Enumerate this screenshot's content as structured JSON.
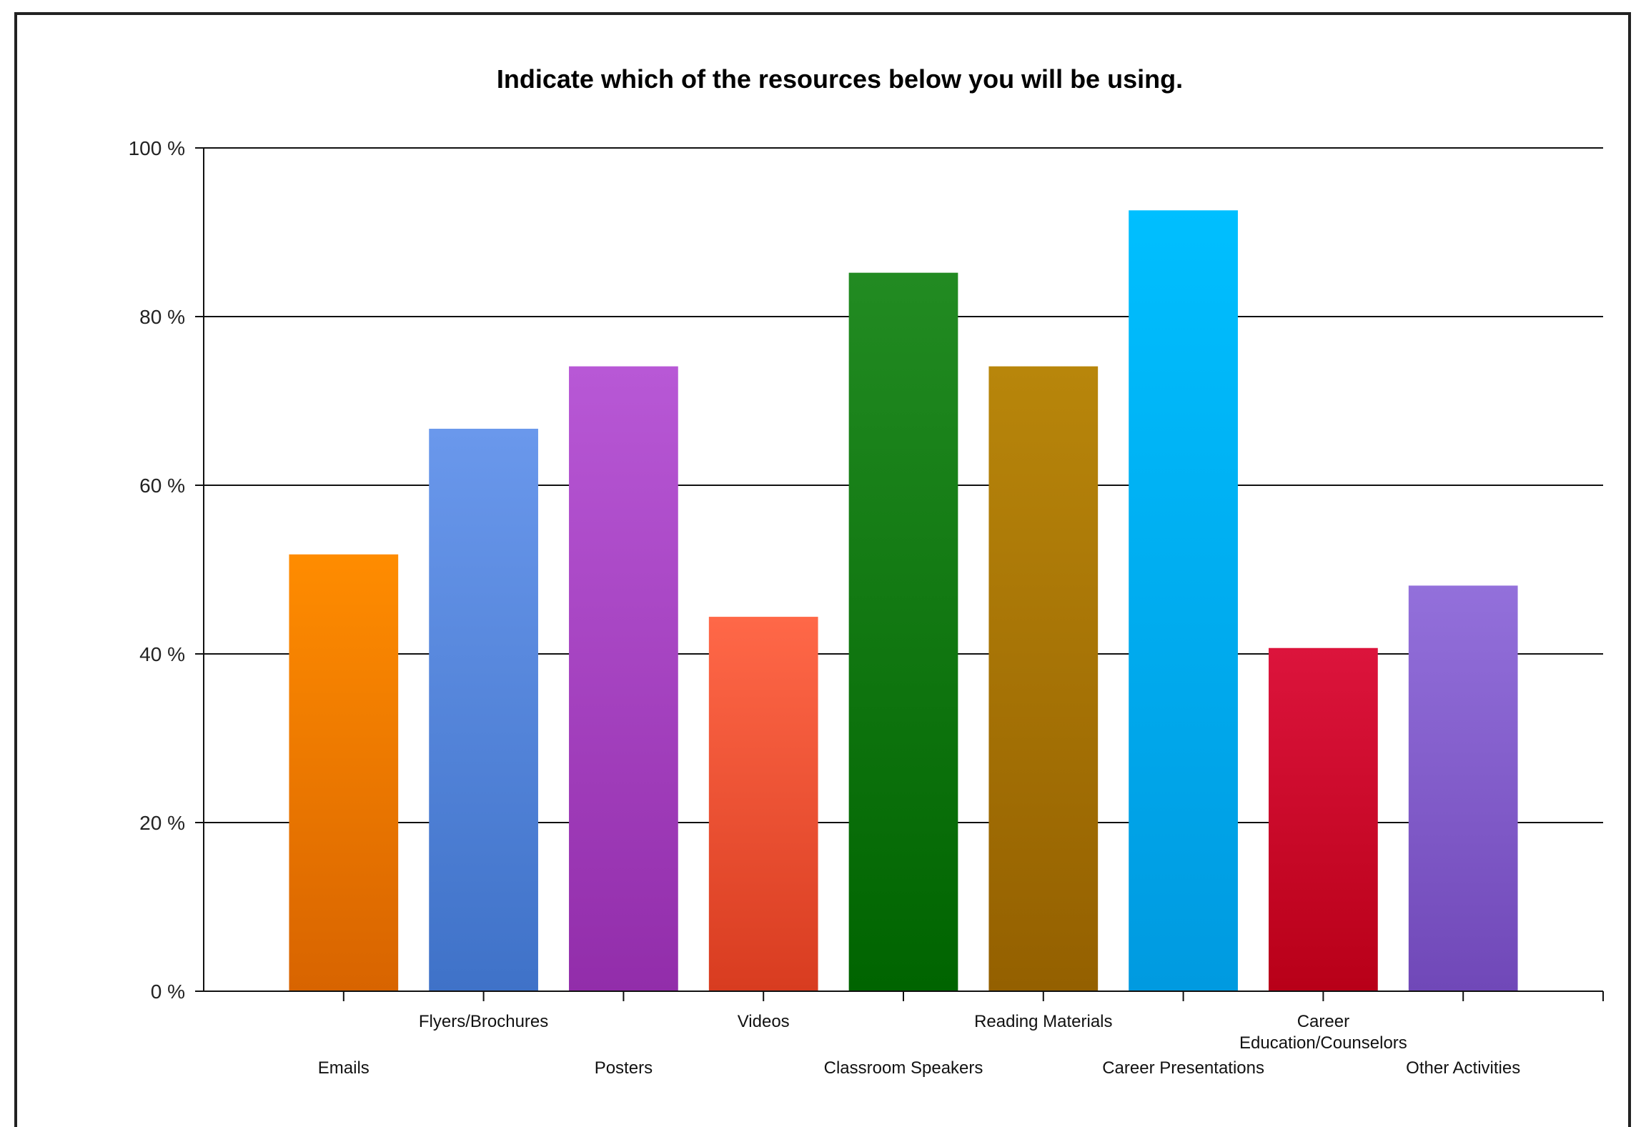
{
  "chart_data": {
    "type": "bar",
    "title": "Indicate which of the resources below you will be using.",
    "xlabel": "",
    "ylabel": "",
    "ylim": [
      0,
      100
    ],
    "yticks": [
      0,
      20,
      40,
      60,
      80,
      100
    ],
    "ytick_labels": [
      "0 %",
      "20 %",
      "40 %",
      "60 %",
      "80 %",
      "100 %"
    ],
    "grid": true,
    "categories": [
      "Emails",
      "Flyers/Brochures",
      "Posters",
      "Videos",
      "Classroom Speakers",
      "Reading Materials",
      "Career Presentations",
      "Career Education/Counselors",
      "Other Activities"
    ],
    "category_label_lines": [
      [
        "Emails"
      ],
      [
        "Flyers/Brochures"
      ],
      [
        "Posters"
      ],
      [
        "Videos"
      ],
      [
        "Classroom Speakers"
      ],
      [
        "Reading Materials"
      ],
      [
        "Career Presentations"
      ],
      [
        "Career",
        "Education/Counselors"
      ],
      [
        "Other Activities"
      ]
    ],
    "values": [
      51.8,
      66.7,
      74.1,
      44.4,
      85.2,
      74.1,
      92.6,
      40.7,
      48.1
    ],
    "colors": [
      [
        "#ff8c00",
        "#d86400"
      ],
      [
        "#6a98ec",
        "#3f72c8"
      ],
      [
        "#b858d6",
        "#922daa"
      ],
      [
        "#ff6848",
        "#d83c20"
      ],
      [
        "#228b22",
        "#006400"
      ],
      [
        "#b8860b",
        "#946000"
      ],
      [
        "#00bfff",
        "#009ae0"
      ],
      [
        "#dc143c",
        "#b80018"
      ],
      [
        "#9370db",
        "#7048b8"
      ]
    ]
  }
}
